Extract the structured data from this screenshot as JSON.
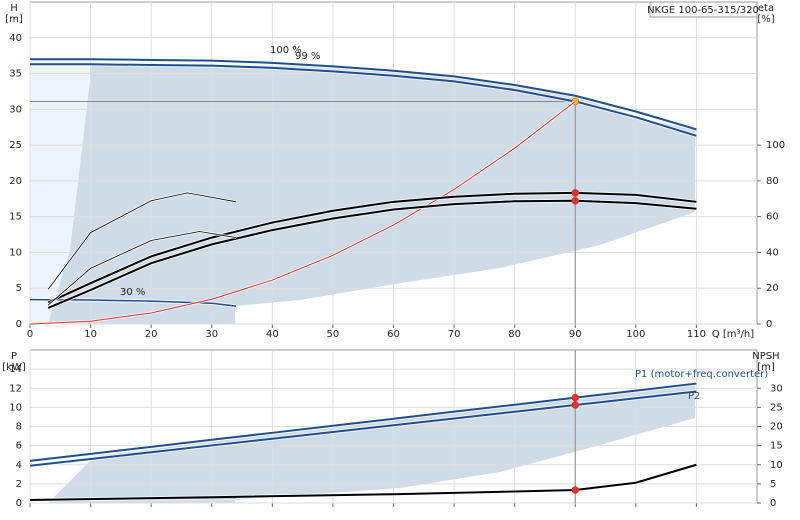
{
  "chart_data": [
    {
      "type": "line",
      "title": "NKGE 100-65-315/320",
      "y_label": "H",
      "y_unit": "[m]",
      "y2_label": "eta",
      "y2_unit": "[%]",
      "x_label": "Q [m³/h]",
      "xlim": [
        0,
        120
      ],
      "xticks": [
        0,
        10,
        20,
        30,
        40,
        50,
        60,
        70,
        80,
        90,
        100,
        110
      ],
      "ylim": [
        0,
        45
      ],
      "yticks": [
        0,
        5,
        10,
        15,
        20,
        25,
        30,
        35,
        40
      ],
      "y2lim": [
        0,
        180
      ],
      "y2ticks": [
        0,
        20,
        40,
        60,
        80,
        100
      ],
      "grid": true,
      "operating_point": {
        "x": 90,
        "y": 31.1,
        "color": "#888888"
      },
      "annotations": [
        "100 %",
        "99 %",
        "30 %"
      ],
      "series": [
        {
          "color": "#1f4e8c",
          "width": 2,
          "x": [
            0,
            10,
            20,
            30,
            40,
            50,
            60,
            70,
            80,
            90,
            100,
            110
          ],
          "values": [
            37,
            37,
            36.9,
            36.8,
            36.5,
            36,
            35.4,
            34.6,
            33.4,
            31.9,
            29.7,
            27.2
          ]
        },
        {
          "color": "#1f4e8c",
          "width": 2,
          "marker_color": "#f5b800",
          "x": [
            0,
            10,
            20,
            30,
            40,
            50,
            60,
            70,
            80,
            90,
            100,
            110
          ],
          "values": [
            36.3,
            36.3,
            36.2,
            36.1,
            35.8,
            35.3,
            34.7,
            33.9,
            32.7,
            31.1,
            28.9,
            26.3
          ]
        },
        {
          "color": "#1f4e8c",
          "width": 1.5,
          "x": [
            0,
            10,
            20,
            30,
            34
          ],
          "values": [
            3.4,
            3.35,
            3.2,
            2.9,
            2.5
          ]
        },
        {
          "color": "#e8302a",
          "width": 1,
          "x": [
            0,
            10,
            20,
            30,
            40,
            50,
            60,
            70,
            80,
            90
          ],
          "values": [
            0,
            0.38,
            1.54,
            3.46,
            6.14,
            9.6,
            13.82,
            18.81,
            24.57,
            31.1
          ]
        },
        {
          "color": "#000000",
          "width": 2,
          "axis": "y2",
          "marker_color": "#e8302a",
          "x": [
            3,
            10,
            20,
            30,
            40,
            50,
            60,
            70,
            80,
            90,
            100,
            110
          ],
          "values": [
            12,
            22.8,
            37.8,
            48.3,
            56.7,
            63.3,
            68.3,
            71.1,
            72.8,
            73.3,
            72.2,
            68.3
          ]
        },
        {
          "color": "#000000",
          "width": 2,
          "axis": "y2",
          "marker_color": "#e8302a",
          "x": [
            3,
            10,
            20,
            30,
            40,
            50,
            60,
            70,
            80,
            90,
            100,
            110
          ],
          "values": [
            9,
            19,
            34,
            44.5,
            52.5,
            59,
            64,
            67,
            68.6,
            68.9,
            67.6,
            64.4
          ]
        },
        {
          "color": "#000000",
          "width": 0.8,
          "axis": "y2",
          "x": [
            3,
            10,
            20,
            26,
            34
          ],
          "values": [
            19.4,
            51.1,
            68.9,
            73.3,
            68.3
          ]
        },
        {
          "color": "#000000",
          "width": 0.8,
          "axis": "y2",
          "x": [
            3,
            10,
            20,
            28,
            34
          ],
          "values": [
            10.6,
            31.1,
            46.7,
            51.7,
            48.3
          ]
        }
      ]
    },
    {
      "type": "line",
      "y_label": "P",
      "y_unit": "[kW]",
      "y2_label": "NPSH",
      "y2_unit": "[m]",
      "xlim": [
        0,
        120
      ],
      "xticks": [
        0,
        10,
        20,
        30,
        40,
        50,
        60,
        70,
        80,
        90,
        100,
        110
      ],
      "ylim": [
        0,
        16
      ],
      "yticks": [
        0,
        2,
        4,
        6,
        8,
        10,
        12,
        14
      ],
      "y2lim": [
        0,
        40
      ],
      "y2ticks": [
        0,
        5,
        10,
        15,
        20,
        25,
        30
      ],
      "grid": true,
      "operating_point": {
        "x": 90,
        "color": "#888888"
      },
      "series": [
        {
          "name": "P1 (motor+freq.converter)",
          "color": "#1f4e8c",
          "width": 2,
          "marker_color": "#e8302a",
          "x": [
            0,
            10,
            20,
            30,
            40,
            50,
            60,
            70,
            80,
            90,
            100,
            110
          ],
          "values": [
            4.4,
            5.14,
            5.87,
            6.61,
            7.34,
            8.08,
            8.81,
            9.55,
            10.28,
            11.02,
            11.75,
            12.49
          ]
        },
        {
          "name": "P2",
          "color": "#1f4e8c",
          "width": 2,
          "marker_color": "#e8302a",
          "x": [
            0,
            10,
            20,
            30,
            40,
            50,
            60,
            70,
            80,
            90,
            100,
            110
          ],
          "values": [
            3.9,
            4.6,
            5.31,
            6.02,
            6.72,
            7.43,
            8.13,
            8.84,
            9.54,
            10.25,
            10.95,
            11.66
          ]
        },
        {
          "color": "#1f4e8c",
          "width": 1.5,
          "x": [
            0,
            10,
            20,
            34
          ],
          "values": [
            0.35,
            0.4,
            0.45,
            0.5
          ]
        },
        {
          "color": "#000000",
          "width": 2,
          "axis": "y2",
          "marker_color": "#e8302a",
          "x": [
            0,
            30,
            60,
            80,
            90,
            100,
            110
          ],
          "values": [
            0.8,
            1.5,
            2.3,
            3,
            3.4,
            5.3,
            10
          ]
        }
      ]
    }
  ]
}
